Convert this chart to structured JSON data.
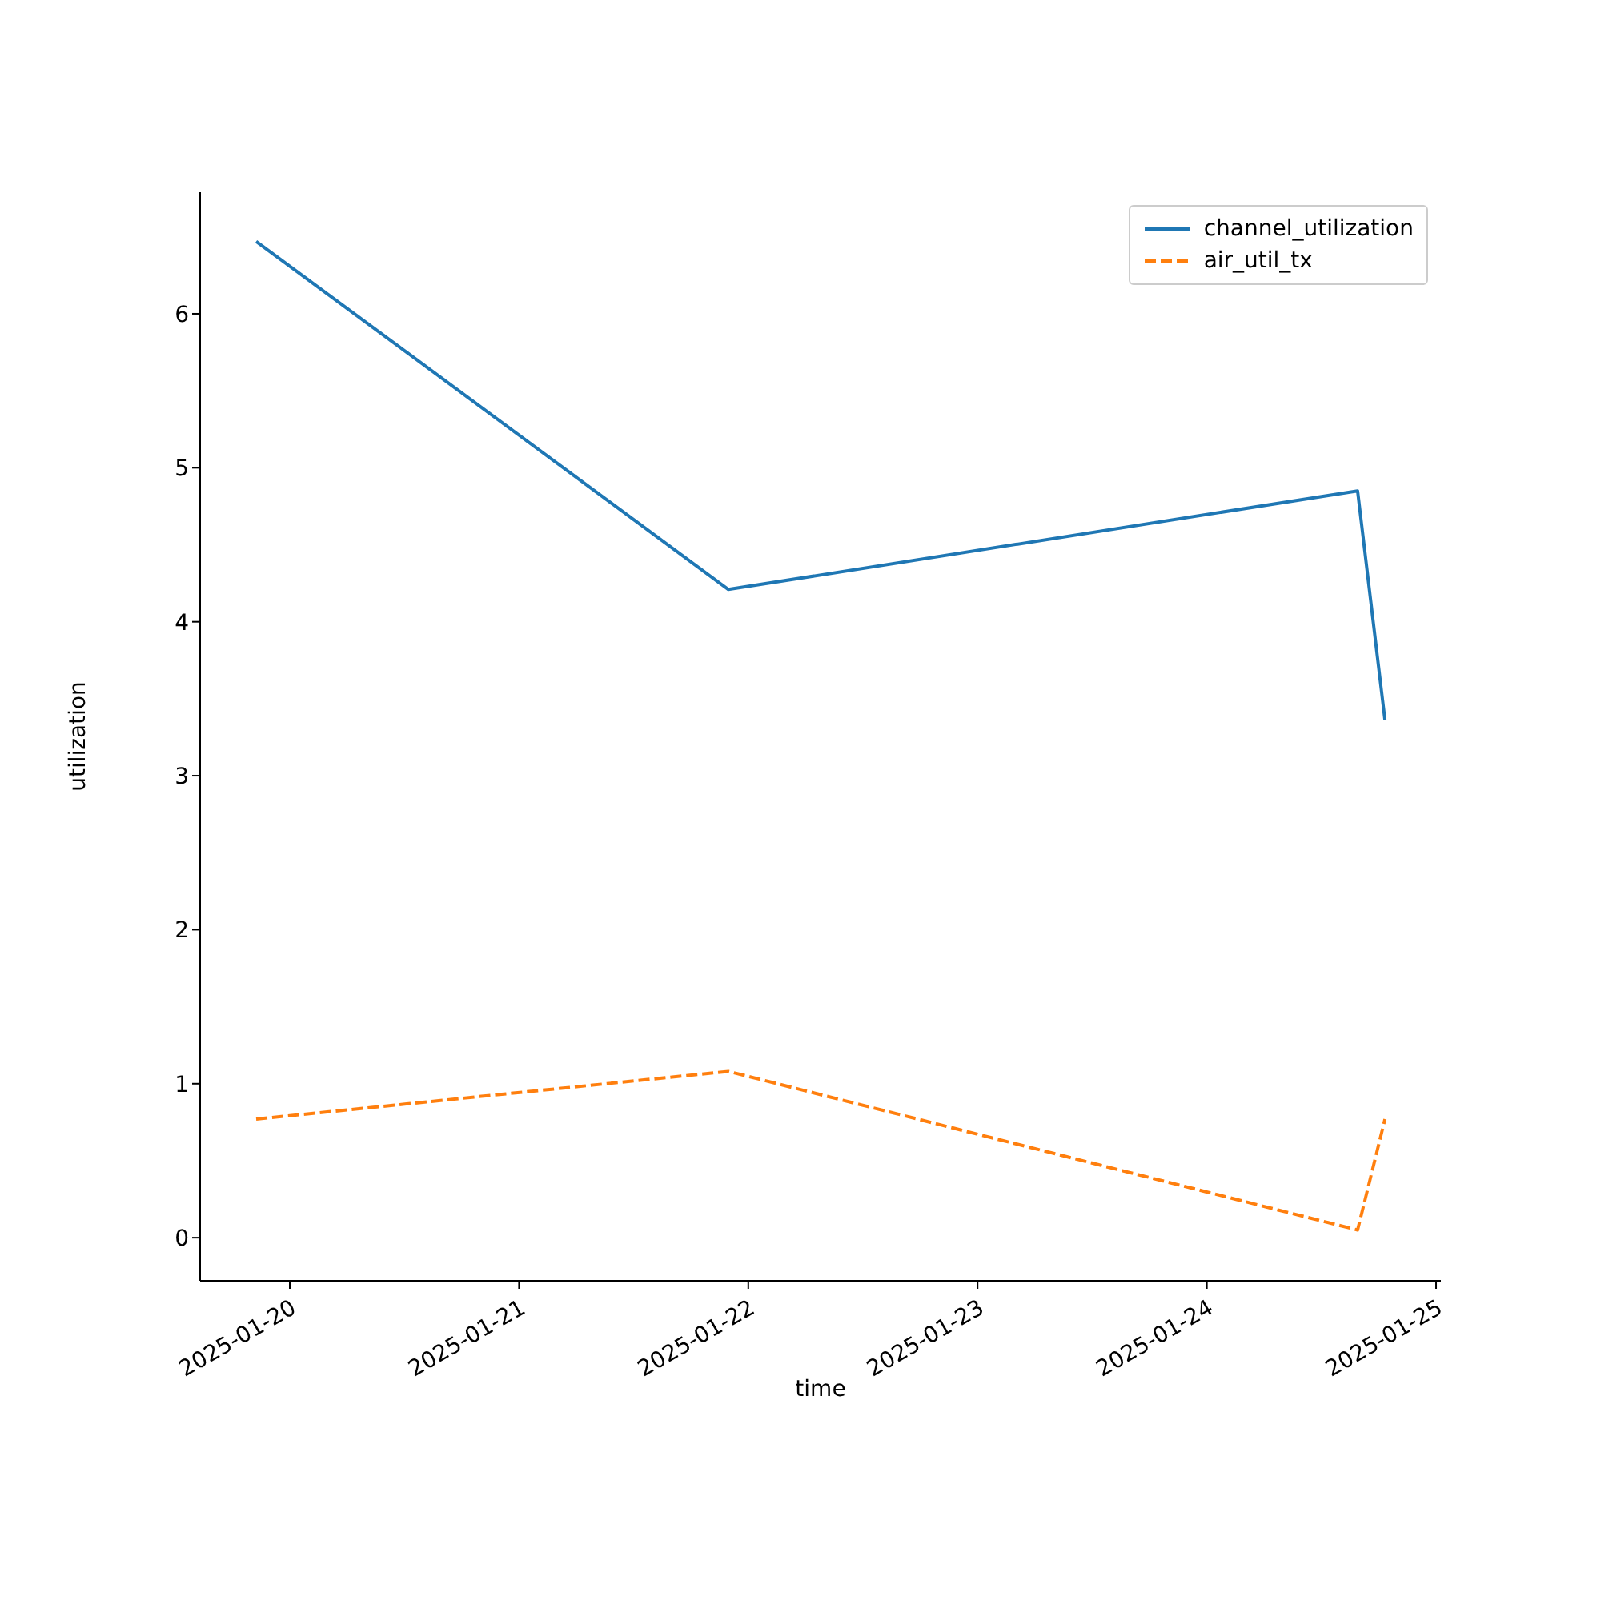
{
  "chart_data": {
    "type": "line",
    "xlabel": "time",
    "ylabel": "utilization",
    "x": [
      "2025-01-19T20:29",
      "2025-01-21T21:55",
      "2025-01-24T15:47",
      "2025-01-24T18:39"
    ],
    "series": [
      {
        "name": "channel_utilization",
        "color": "#1f77b4",
        "line_style": "solid",
        "values": [
          6.47,
          4.21,
          4.85,
          3.36
        ]
      },
      {
        "name": "air_util_tx",
        "color": "#ff7f0e",
        "line_style": "dashed",
        "values": [
          0.77,
          1.08,
          0.05,
          0.77
        ]
      }
    ],
    "xlim": [
      "2025-01-19T14:37",
      "2025-01-25T00:30"
    ],
    "xticks": [
      "2025-01-20",
      "2025-01-21",
      "2025-01-22",
      "2025-01-23",
      "2025-01-24",
      "2025-01-25"
    ],
    "ylim": [
      -0.28,
      6.79
    ],
    "yticks": [
      0,
      1,
      2,
      3,
      4,
      5,
      6
    ],
    "grid": false,
    "legend": "top right"
  }
}
